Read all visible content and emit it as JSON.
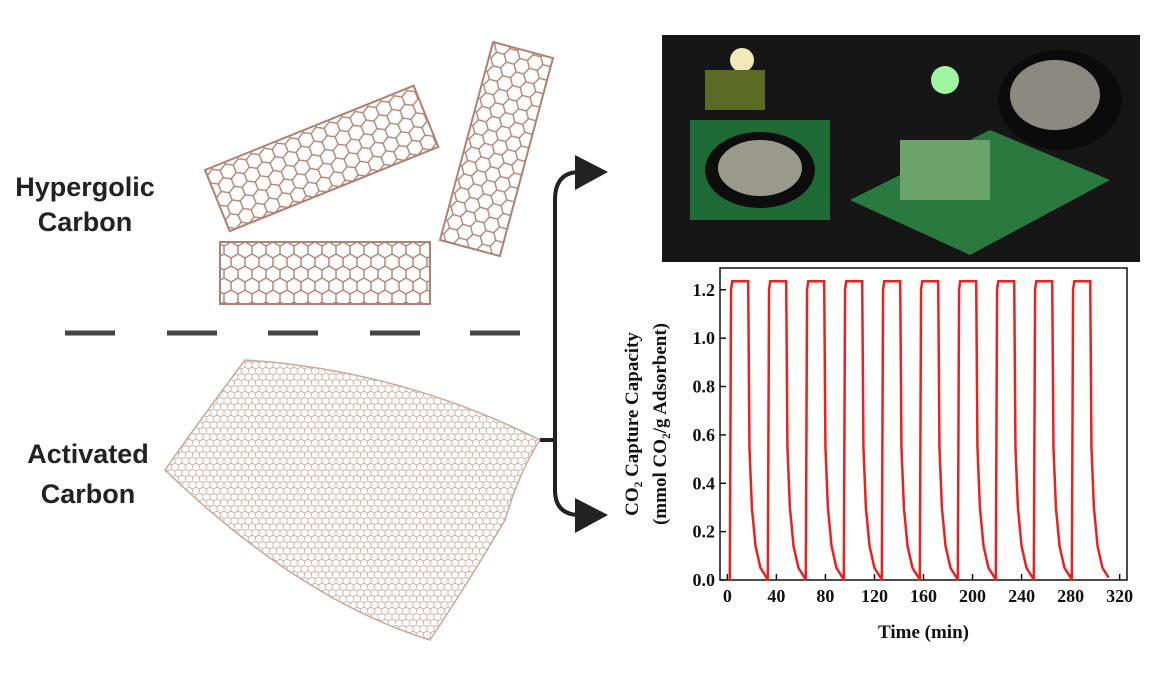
{
  "labels": {
    "hypergolic": [
      "Hypergolic",
      "Carbon"
    ],
    "activated": [
      "Activated",
      "Carbon"
    ]
  },
  "chart_data": {
    "type": "line",
    "xlabel": "Time (min)",
    "ylabel": [
      "CO₂ Capture Capacity",
      "(mmol CO₂/g Adsorbent)"
    ],
    "x": [
      2,
      3,
      4,
      17,
      18,
      20,
      23,
      27,
      32,
      33,
      34,
      35,
      48,
      49,
      51,
      54,
      58,
      63,
      64,
      65,
      66,
      79,
      80,
      82,
      85,
      89,
      94,
      95,
      96,
      97,
      110,
      111,
      113,
      116,
      120,
      125,
      126,
      127,
      128,
      141,
      142,
      144,
      147,
      151,
      156,
      157,
      158,
      159,
      172,
      173,
      175,
      178,
      182,
      187,
      188,
      189,
      190,
      203,
      204,
      206,
      209,
      213,
      218,
      219,
      220,
      221,
      234,
      235,
      237,
      240,
      244,
      249,
      250,
      251,
      252,
      265,
      266,
      268,
      271,
      275,
      280,
      281,
      282,
      283,
      296,
      297,
      299,
      302,
      306,
      311
    ],
    "series": [
      {
        "color": "#e8221f",
        "values": [
          0,
          1.2,
          1.235,
          1.235,
          0.55,
          0.3,
          0.14,
          0.05,
          0.01,
          0,
          1.2,
          1.235,
          1.235,
          0.55,
          0.3,
          0.14,
          0.05,
          0.01,
          0,
          1.2,
          1.235,
          1.235,
          0.55,
          0.3,
          0.14,
          0.05,
          0.01,
          0,
          1.2,
          1.235,
          1.235,
          0.55,
          0.3,
          0.14,
          0.05,
          0.01,
          0,
          1.2,
          1.235,
          1.235,
          0.55,
          0.3,
          0.14,
          0.05,
          0.01,
          0,
          1.2,
          1.235,
          1.235,
          0.55,
          0.3,
          0.14,
          0.05,
          0.01,
          0,
          1.2,
          1.235,
          1.235,
          0.55,
          0.3,
          0.14,
          0.05,
          0.01,
          0,
          1.2,
          1.235,
          1.235,
          0.55,
          0.3,
          0.14,
          0.05,
          0.01,
          0,
          1.2,
          1.235,
          1.235,
          0.55,
          0.3,
          0.14,
          0.05,
          0.01,
          0,
          1.2,
          1.235,
          1.235,
          0.55,
          0.3,
          0.14,
          0.05,
          0.01
        ]
      }
    ],
    "xlim": [
      -6,
      326
    ],
    "xticks": [
      0,
      40,
      80,
      120,
      160,
      200,
      240,
      280,
      320
    ],
    "ylim": [
      0,
      1.29
    ],
    "yticks": [
      {
        "value": 0,
        "label": "0.0"
      },
      0.2,
      0.4,
      0.6,
      0.8,
      {
        "value": 1,
        "label": "1.0"
      },
      1.2
    ]
  }
}
